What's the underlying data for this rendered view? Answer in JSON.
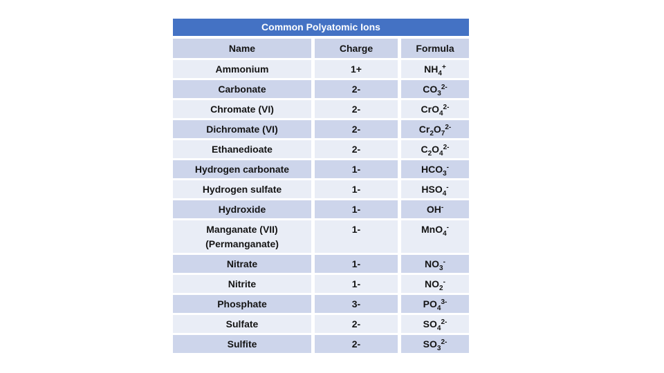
{
  "table": {
    "title": "Common Polyatomic Ions",
    "columns": [
      "Name",
      "Charge",
      "Formula"
    ],
    "colors": {
      "title_bg": "#4472C4",
      "title_text": "#FFFFFF",
      "header_bg": "#CBD3E9",
      "row_light": "#E9EDF6",
      "row_dark": "#CDD5EB",
      "text": "#141414"
    },
    "rows": [
      {
        "name": "Ammonium",
        "charge": "1+",
        "formula": [
          [
            "t",
            "NH"
          ],
          [
            "sub",
            "4"
          ],
          [
            "sup",
            "+"
          ]
        ]
      },
      {
        "name": "Carbonate",
        "charge": "2-",
        "formula": [
          [
            "t",
            "CO"
          ],
          [
            "sub",
            "3"
          ],
          [
            "sup",
            "2-"
          ]
        ]
      },
      {
        "name": "Chromate (VI)",
        "charge": "2-",
        "formula": [
          [
            "t",
            "CrO"
          ],
          [
            "sub",
            "4"
          ],
          [
            "sup",
            "2-"
          ]
        ]
      },
      {
        "name": "Dichromate (VI)",
        "charge": "2-",
        "formula": [
          [
            "t",
            "Cr"
          ],
          [
            "sub",
            "2"
          ],
          [
            "t",
            "O"
          ],
          [
            "sub",
            "7"
          ],
          [
            "sup",
            "2-"
          ]
        ]
      },
      {
        "name": "Ethanedioate",
        "charge": "2-",
        "formula": [
          [
            "t",
            "C"
          ],
          [
            "sub",
            "2"
          ],
          [
            "t",
            "O"
          ],
          [
            "sub",
            "4"
          ],
          [
            "sup",
            "2-"
          ]
        ]
      },
      {
        "name": "Hydrogen carbonate",
        "charge": "1-",
        "formula": [
          [
            "t",
            "HCO"
          ],
          [
            "sub",
            "3"
          ],
          [
            "sup",
            "-"
          ]
        ]
      },
      {
        "name": "Hydrogen sulfate",
        "charge": "1-",
        "formula": [
          [
            "t",
            "HSO"
          ],
          [
            "sub",
            "4"
          ],
          [
            "sup",
            "-"
          ]
        ]
      },
      {
        "name": "Hydroxide",
        "charge": "1-",
        "formula": [
          [
            "t",
            "OH"
          ],
          [
            "sup",
            "-"
          ]
        ]
      },
      {
        "name": "Manganate (VII)",
        "name_line2": "(Permanganate)",
        "tall": true,
        "charge": "1-",
        "formula": [
          [
            "t",
            "MnO"
          ],
          [
            "sub",
            "4"
          ],
          [
            "sup",
            "-"
          ]
        ]
      },
      {
        "name": "Nitrate",
        "charge": "1-",
        "formula": [
          [
            "t",
            "NO"
          ],
          [
            "sub",
            "3"
          ],
          [
            "sup",
            "-"
          ]
        ]
      },
      {
        "name": "Nitrite",
        "charge": "1-",
        "formula": [
          [
            "t",
            "NO"
          ],
          [
            "sub",
            "2"
          ],
          [
            "sup",
            "-"
          ]
        ]
      },
      {
        "name": "Phosphate",
        "charge": "3-",
        "formula": [
          [
            "t",
            "PO"
          ],
          [
            "sub",
            "4"
          ],
          [
            "sup",
            "3-"
          ]
        ]
      },
      {
        "name": "Sulfate",
        "charge": "2-",
        "formula": [
          [
            "t",
            "SO"
          ],
          [
            "sub",
            "4"
          ],
          [
            "sup",
            "2-"
          ]
        ]
      },
      {
        "name": "Sulfite",
        "charge": "2-",
        "formula": [
          [
            "t",
            "SO"
          ],
          [
            "sub",
            "3"
          ],
          [
            "sup",
            "2-"
          ]
        ]
      }
    ]
  }
}
